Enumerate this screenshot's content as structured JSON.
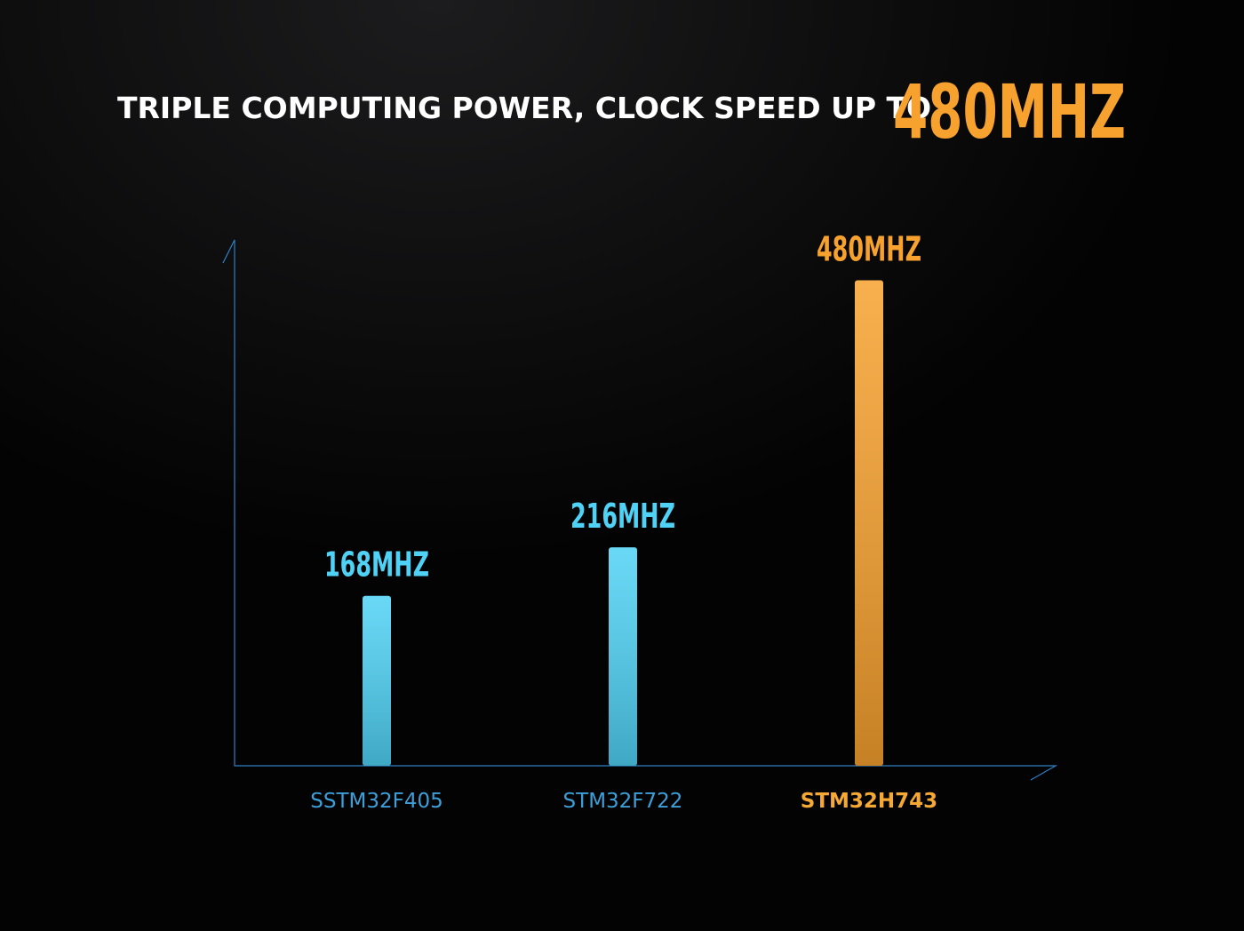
{
  "chart_data": {
    "type": "bar",
    "title": "TRIPLE COMPUTING POWER, CLOCK SPEED UP TO",
    "title_highlight": "480MHZ",
    "categories": [
      "SSTM32F405",
      "STM32F722",
      "STM32H743"
    ],
    "values": [
      168,
      216,
      480
    ],
    "value_labels": [
      "168MHZ",
      "216MHZ",
      "480MHZ"
    ],
    "colors": [
      "#4fd2f5",
      "#4fd2f5",
      "#f7a12e"
    ],
    "label_colors": [
      "#3d9fd9",
      "#3d9fd9",
      "#f5a833"
    ],
    "ylim": [
      0,
      520
    ]
  }
}
